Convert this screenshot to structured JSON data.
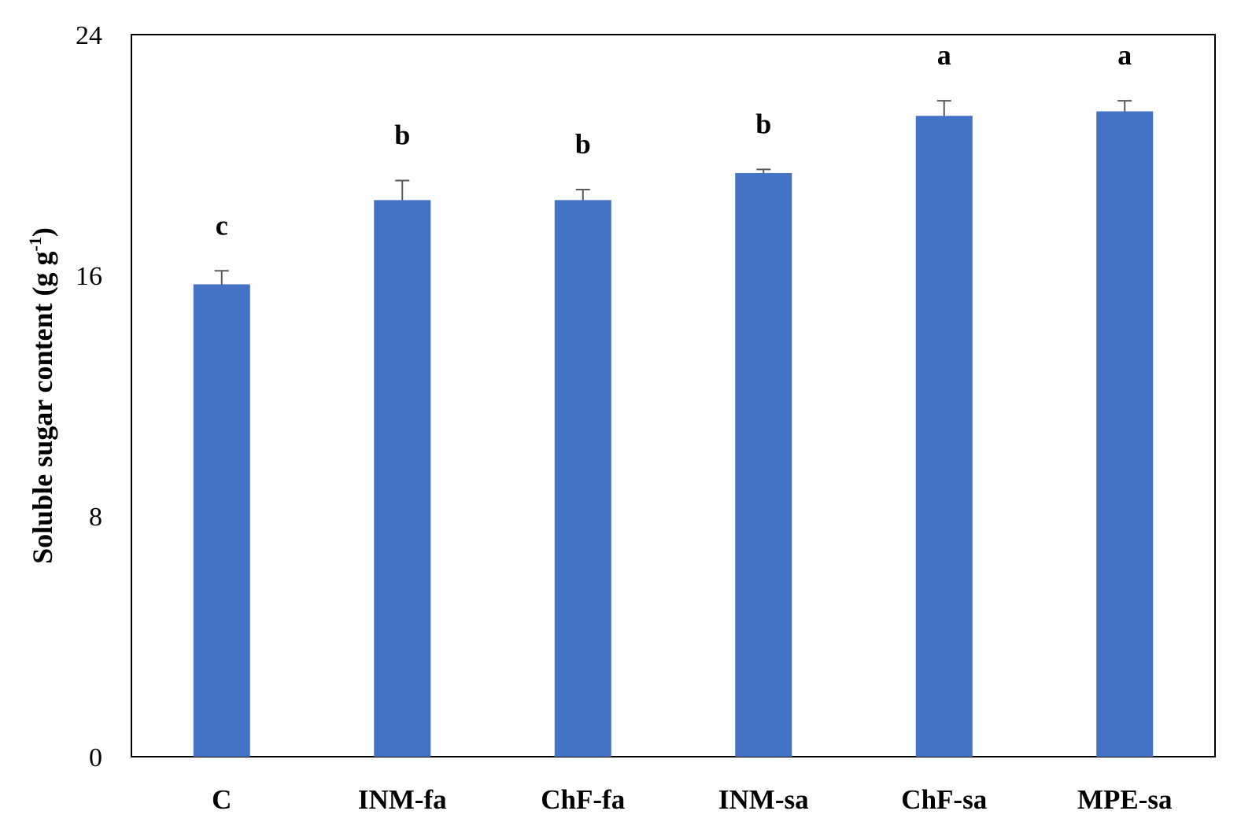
{
  "chart_data": {
    "type": "bar",
    "title": "",
    "xlabel": "",
    "ylabel": "Soluble  sugar content (g g-1)",
    "ylabel_parts": {
      "main": "Soluble  sugar content (g g",
      "sup": "-1",
      "end": ")"
    },
    "ylim": [
      0,
      24
    ],
    "yticks": [
      0,
      8,
      16,
      24
    ],
    "grid": false,
    "legend": "none",
    "categories": [
      "C",
      "INM-fa",
      "ChF-fa",
      "INM-sa",
      "ChF-sa",
      "MPE-sa"
    ],
    "series": [
      {
        "values": [
          15.7,
          18.5,
          18.5,
          19.4,
          21.3,
          21.45
        ],
        "errors": [
          0.45,
          0.65,
          0.35,
          0.12,
          0.5,
          0.35
        ],
        "significance": [
          "c",
          "b",
          "b",
          "b",
          "a",
          "a"
        ],
        "color": "#4472C4"
      }
    ]
  }
}
